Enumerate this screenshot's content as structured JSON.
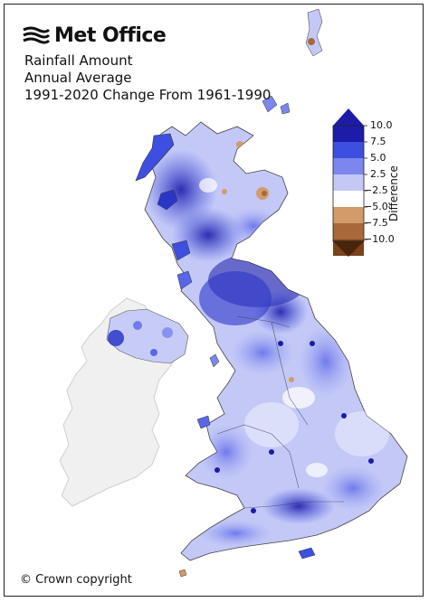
{
  "brand": {
    "name": "Met Office",
    "logo_icon": "met-office-waves-icon"
  },
  "title": {
    "line1": "Rainfall Amount",
    "line2": "Annual Average",
    "line3": "1991-2020 Change From 1961-1990"
  },
  "colorbar": {
    "title": "Difference",
    "ticks": [
      "10.0",
      "7.5",
      "5.0",
      "2.5",
      "−2.5",
      "−5.0",
      "−7.5",
      "−10.0"
    ],
    "colors": [
      "#1c1ca8",
      "#3d4fe0",
      "#7b86ef",
      "#c3c8f7",
      "#ffffff",
      "#d29b6a",
      "#a8683a",
      "#7a431c",
      "#4a2409"
    ]
  },
  "map": {
    "land_color": "#eef0f2",
    "ireland_color": "#f0f0f0",
    "sea_color": "#ffffff"
  },
  "copyright": "© Crown copyright"
}
